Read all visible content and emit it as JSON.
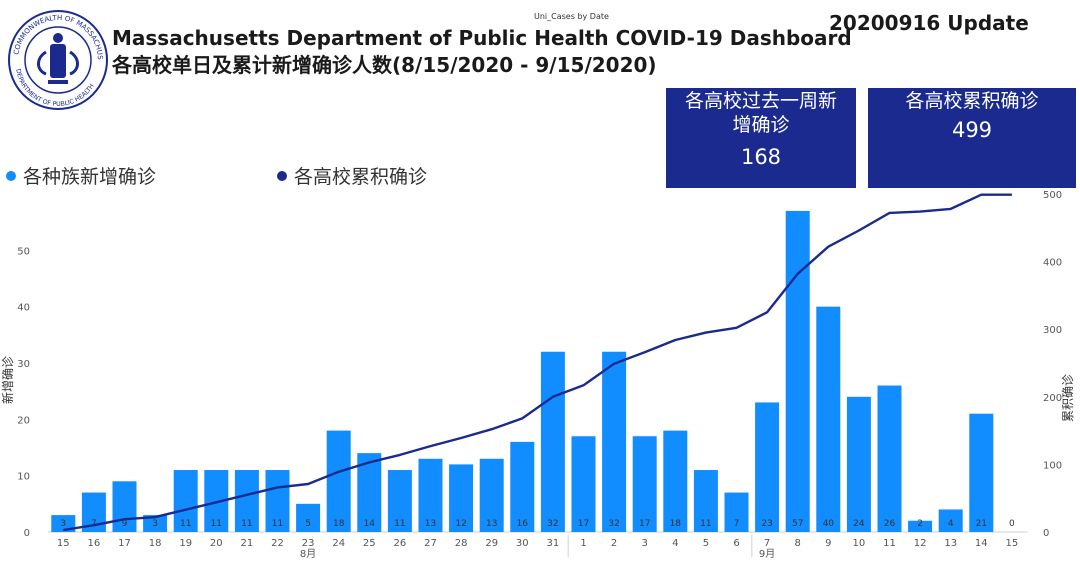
{
  "header": {
    "title_line1": "Massachusetts Department of Public Health COVID-19 Dashboard",
    "title_line2": "各高校单日及累计新增确诊人数(8/15/2020 - 9/15/2020)",
    "visual_caption": "Uni_Cases by Date",
    "update_label": "20200916 Update",
    "seal_text": "COMMONWEALTH OF MASSACHUSETTS · DEPARTMENT OF PUBLIC HEALTH"
  },
  "kpis": {
    "weekly": {
      "label_line1": "各高校过去一周新",
      "label_line2": "增确诊",
      "value": "168"
    },
    "total": {
      "label": "各高校累积确诊",
      "value": "499"
    }
  },
  "legend": {
    "daily": {
      "label": "各种族新增确诊",
      "color": "#118dff"
    },
    "cumulative": {
      "label": "各高校累积确诊",
      "color": "#1b2a8e"
    }
  },
  "chart_data": {
    "type": "bar+line",
    "x": [
      "15",
      "16",
      "17",
      "18",
      "19",
      "20",
      "21",
      "22",
      "23",
      "24",
      "25",
      "26",
      "27",
      "28",
      "29",
      "30",
      "31",
      "1",
      "2",
      "3",
      "4",
      "5",
      "6",
      "7",
      "8",
      "9",
      "10",
      "11",
      "12",
      "13",
      "14",
      "15"
    ],
    "month_labels": [
      {
        "label": "8月",
        "index": 8
      },
      {
        "label": "9月",
        "index": 23
      }
    ],
    "series": [
      {
        "name": "各种族新增确诊",
        "type": "bar",
        "axis": "left",
        "color": "#118dff",
        "values": [
          3,
          7,
          9,
          3,
          11,
          11,
          11,
          11,
          5,
          18,
          14,
          11,
          13,
          12,
          13,
          16,
          32,
          17,
          32,
          17,
          18,
          11,
          7,
          23,
          57,
          40,
          24,
          26,
          2,
          4,
          21,
          0
        ]
      },
      {
        "name": "各高校累积确诊",
        "type": "line",
        "axis": "right",
        "color": "#1b2a8e",
        "values": [
          3,
          10,
          19,
          22,
          33,
          44,
          55,
          66,
          71,
          89,
          103,
          114,
          127,
          139,
          152,
          168,
          200,
          217,
          249,
          266,
          284,
          295,
          302,
          325,
          382,
          422,
          446,
          472,
          474,
          478,
          499,
          499
        ]
      }
    ],
    "ylabel_left": "新增确诊",
    "ylabel_right": "累积确诊",
    "ylim_left": [
      0,
      60
    ],
    "yticks_left": [
      "0",
      "10",
      "20",
      "30",
      "40",
      "50"
    ],
    "ylim_right": [
      0,
      500
    ],
    "yticks_right": [
      "0",
      "100",
      "200",
      "300",
      "400",
      "500"
    ],
    "grid": false
  }
}
